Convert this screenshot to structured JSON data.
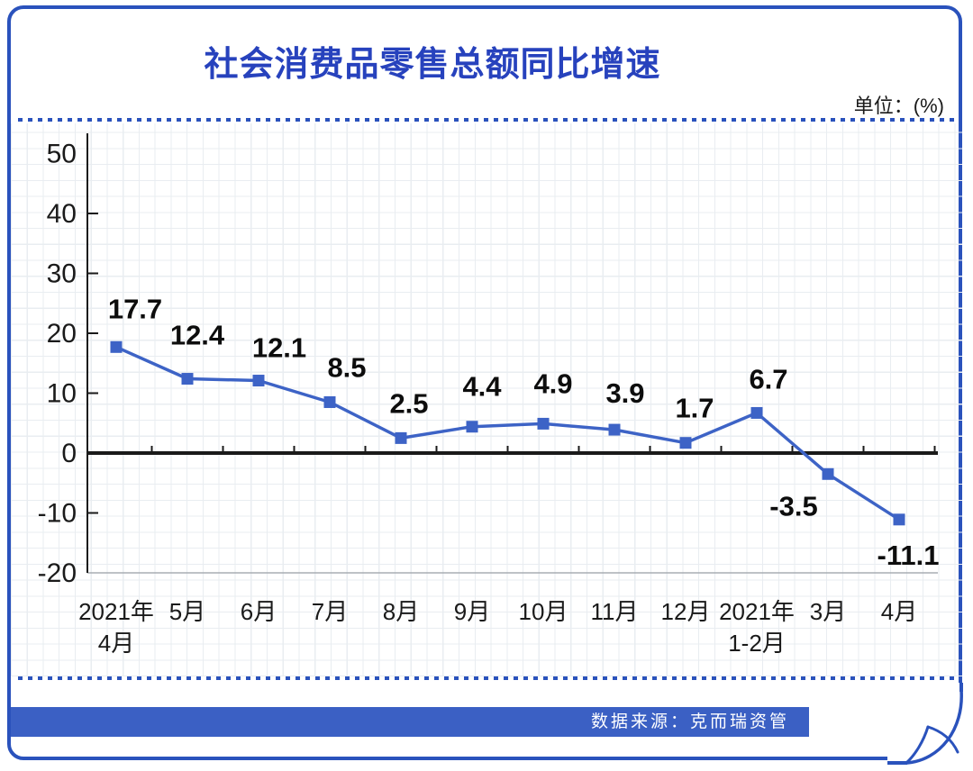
{
  "title": "社会消费品零售总额同比增速",
  "unit_label": "单位：(%)",
  "footer": {
    "source_label": "数据来源：克而瑞资管"
  },
  "colors": {
    "accent_blue": "#2a52bc",
    "title_blue": "#2742bd",
    "line_blue": "#3d63c6",
    "footer_blue": "#3b60c4",
    "axis_black": "#1a1a1a",
    "label_black": "#0d0d0d",
    "baseline_gray": "#a8adb3"
  },
  "chart_data": {
    "type": "line",
    "title": "社会消费品零售总额同比增速",
    "unit": "%",
    "categories": [
      "2021年\n4月",
      "5月",
      "6月",
      "7月",
      "8月",
      "9月",
      "10月",
      "11月",
      "12月",
      "2021年\n1-2月",
      "3月",
      "4月"
    ],
    "values": [
      17.7,
      12.4,
      12.1,
      8.5,
      2.5,
      4.4,
      4.9,
      3.9,
      1.7,
      6.7,
      -3.5,
      -11.1
    ],
    "y_ticks": [
      50,
      40,
      30,
      20,
      10,
      0,
      -10,
      -20
    ],
    "ylim": [
      -20,
      55
    ],
    "xlabel": "",
    "ylabel": "%",
    "grid": "graph-paper-background",
    "legend": "none",
    "marker": "square",
    "zero_axis": true
  }
}
